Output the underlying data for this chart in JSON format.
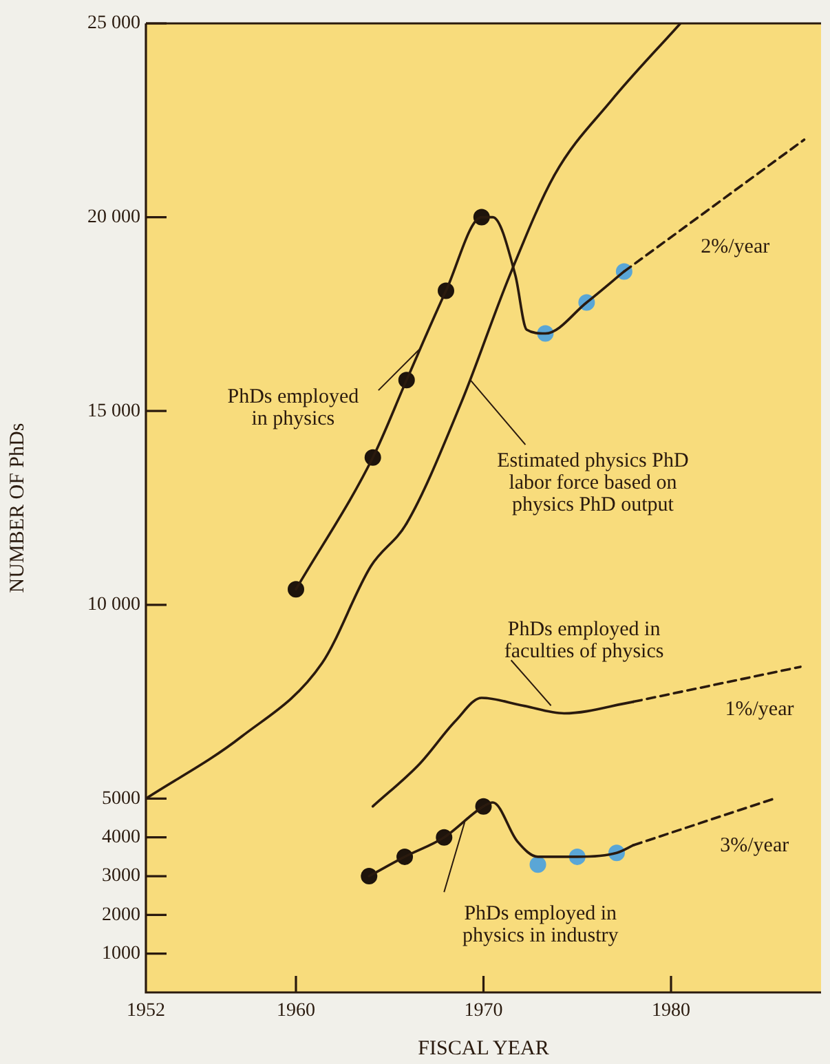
{
  "chart_data": {
    "type": "line",
    "xlabel": "FISCAL YEAR",
    "ylabel": "NUMBER OF PhDs",
    "xlim": [
      1952,
      1988
    ],
    "xticks": [
      1952,
      1960,
      1970,
      1980
    ],
    "ylim": [
      0,
      25000
    ],
    "yticks": [
      1000,
      2000,
      3000,
      4000,
      5000,
      {
        "value": 10000,
        "label": "10 000"
      },
      {
        "value": 15000,
        "label": "15 000"
      },
      {
        "value": 20000,
        "label": "20 000"
      },
      {
        "value": 25000,
        "label": "25 000"
      }
    ],
    "grid": false,
    "legend": false,
    "marker": "none",
    "line_style": "solid",
    "series": [
      {
        "color": "#2a1a0e",
        "x": [
          1960,
          1964.1,
          1965.9,
          1968,
          1969.9,
          1970.5,
          1971.7,
          1972.3,
          1973.3,
          1975.5,
          1977.5
        ],
        "values": [
          10400,
          13800,
          15800,
          18100,
          20000,
          20000,
          18500,
          17100,
          17000,
          17800,
          18600
        ]
      },
      {
        "type": "line",
        "color": "#2a1a0e",
        "line_style": "dashed",
        "x": [
          1977.5,
          1987.1
        ],
        "values": [
          18600,
          22000
        ]
      },
      {
        "type": "scatter",
        "color": "#1e140c",
        "marker": "circle",
        "x": [
          1960,
          1964.1,
          1965.9,
          1968,
          1969.9
        ],
        "values": [
          10400,
          13800,
          15800,
          18100,
          20000
        ]
      },
      {
        "type": "scatter",
        "color": "#5aa6d6",
        "marker": "circle",
        "x": [
          1973.3,
          1975.5,
          1977.5
        ],
        "values": [
          17000,
          17800,
          18600
        ]
      },
      {
        "color": "#2a1a0e",
        "x": [
          1952,
          1957.1,
          1961.4,
          1964,
          1965.9,
          1968.8,
          1971.4,
          1973.8,
          1976.8,
          1980.5
        ],
        "values": [
          5000,
          6600,
          8500,
          11000,
          12100,
          15200,
          18500,
          21100,
          23000,
          25000
        ]
      },
      {
        "color": "#2a1a0e",
        "x": [
          1964.1,
          1966.6,
          1968.5,
          1969.9,
          1972.1,
          1974.3,
          1978
        ],
        "values": [
          4800,
          5900,
          7000,
          7600,
          7400,
          7200,
          7500
        ]
      },
      {
        "type": "line",
        "color": "#2a1a0e",
        "line_style": "dashed",
        "x": [
          1978,
          1986.9
        ],
        "values": [
          7500,
          8400
        ]
      },
      {
        "color": "#2a1a0e",
        "x": [
          1963.9,
          1965.8,
          1967.9,
          1970,
          1970.5,
          1971.8,
          1972.9,
          1975,
          1977.1,
          1978
        ],
        "values": [
          3000,
          3500,
          4000,
          4800,
          4900,
          3900,
          3500,
          3500,
          3600,
          3800
        ]
      },
      {
        "type": "line",
        "color": "#2a1a0e",
        "line_style": "dashed",
        "x": [
          1978,
          1985.5
        ],
        "values": [
          3800,
          5000
        ]
      },
      {
        "type": "scatter",
        "color": "#1e140c",
        "marker": "circle",
        "x": [
          1963.9,
          1965.8,
          1967.9,
          1970
        ],
        "values": [
          3000,
          3500,
          4000,
          4800
        ]
      },
      {
        "type": "scatter",
        "color": "#5aa6d6",
        "marker": "circle",
        "x": [
          1972.9,
          1975,
          1977.1
        ],
        "values": [
          3300,
          3500,
          3600
        ]
      }
    ],
    "annotations": [
      {
        "text": "PhDs employed\nin physics",
        "x": 1966.6,
        "y": 16600
      },
      {
        "text": "Estimated physics PhD\nlabor force based on\nphysics PhD output",
        "x": 1969.3,
        "y": 15800
      },
      {
        "text": "2%/year",
        "x": 1981,
        "y": 19800
      },
      {
        "text": "PhDs employed in\nfaculties of physics",
        "x": 1973.6,
        "y": 7400
      },
      {
        "text": "1%/year",
        "x": 1982,
        "y": 7900
      },
      {
        "text": "PhDs employed in\nphysics in industry",
        "x": 1969,
        "y": 4400
      },
      {
        "text": "3%/year",
        "x": 1981,
        "y": 4200
      }
    ]
  }
}
